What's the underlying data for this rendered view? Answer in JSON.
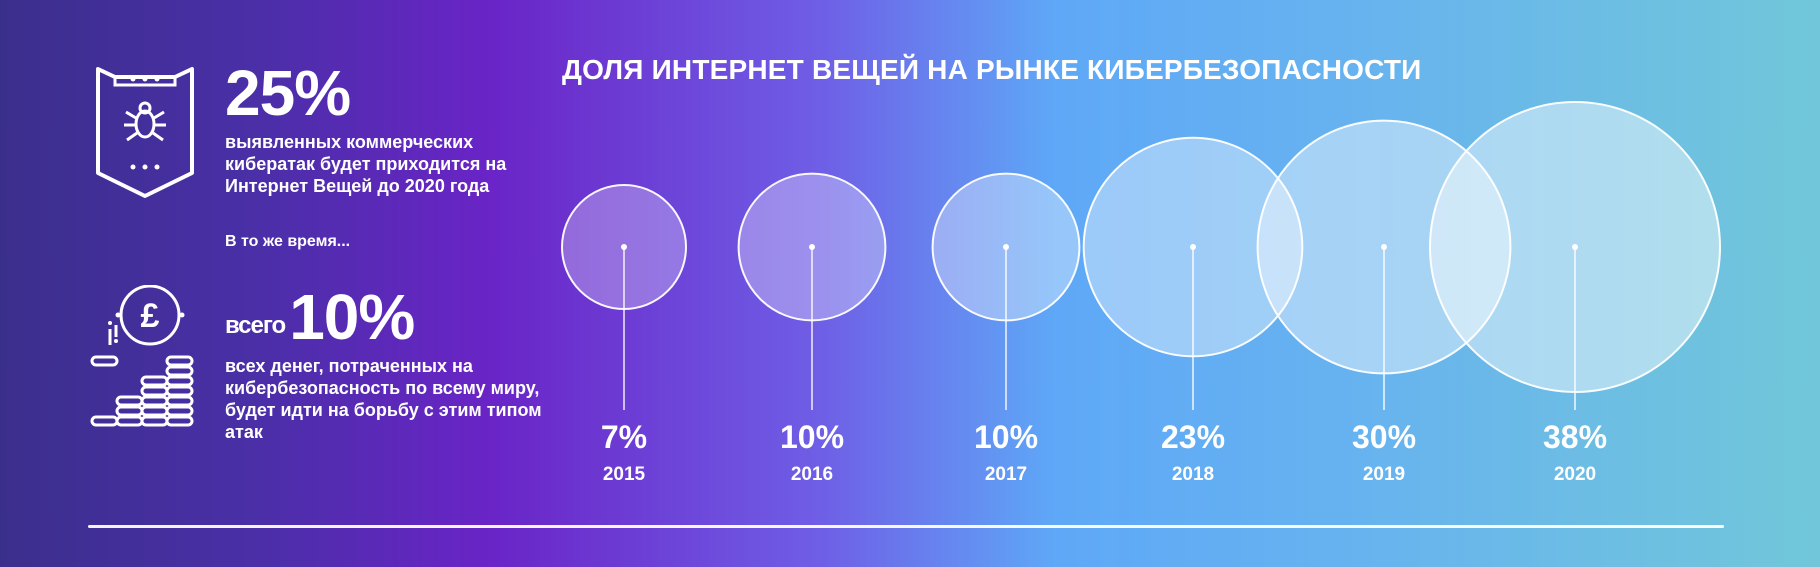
{
  "left_panel": {
    "stat1": {
      "value": "25%",
      "description": "выявленных коммерческих кибератак будет приходится на Интернет Вещей до 2020 года"
    },
    "meanwhile": "В то же время...",
    "stat2": {
      "prefix": "всего",
      "value": "10%",
      "description": "всех денег, потраченных на кибербезопасность по всему миру, будет идти на борьбу с этим типом атак"
    },
    "icons": {
      "shield": "shield-bug-icon",
      "coins": "pound-coins-icon"
    }
  },
  "chart_data": {
    "type": "bubble",
    "title": "ДОЛЯ ИНТЕРНЕТ ВЕЩЕЙ НА РЫНКЕ КИБЕРБЕЗОПАСНОСТИ",
    "categories": [
      "2015",
      "2016",
      "2017",
      "2018",
      "2019",
      "2020"
    ],
    "values": [
      7,
      10,
      10,
      23,
      30,
      38
    ],
    "value_labels": [
      "7%",
      "10%",
      "10%",
      "23%",
      "30%",
      "38%"
    ],
    "unit": "%"
  },
  "colors": {
    "bubble_fill": "#ffffff",
    "text": "#ffffff"
  }
}
